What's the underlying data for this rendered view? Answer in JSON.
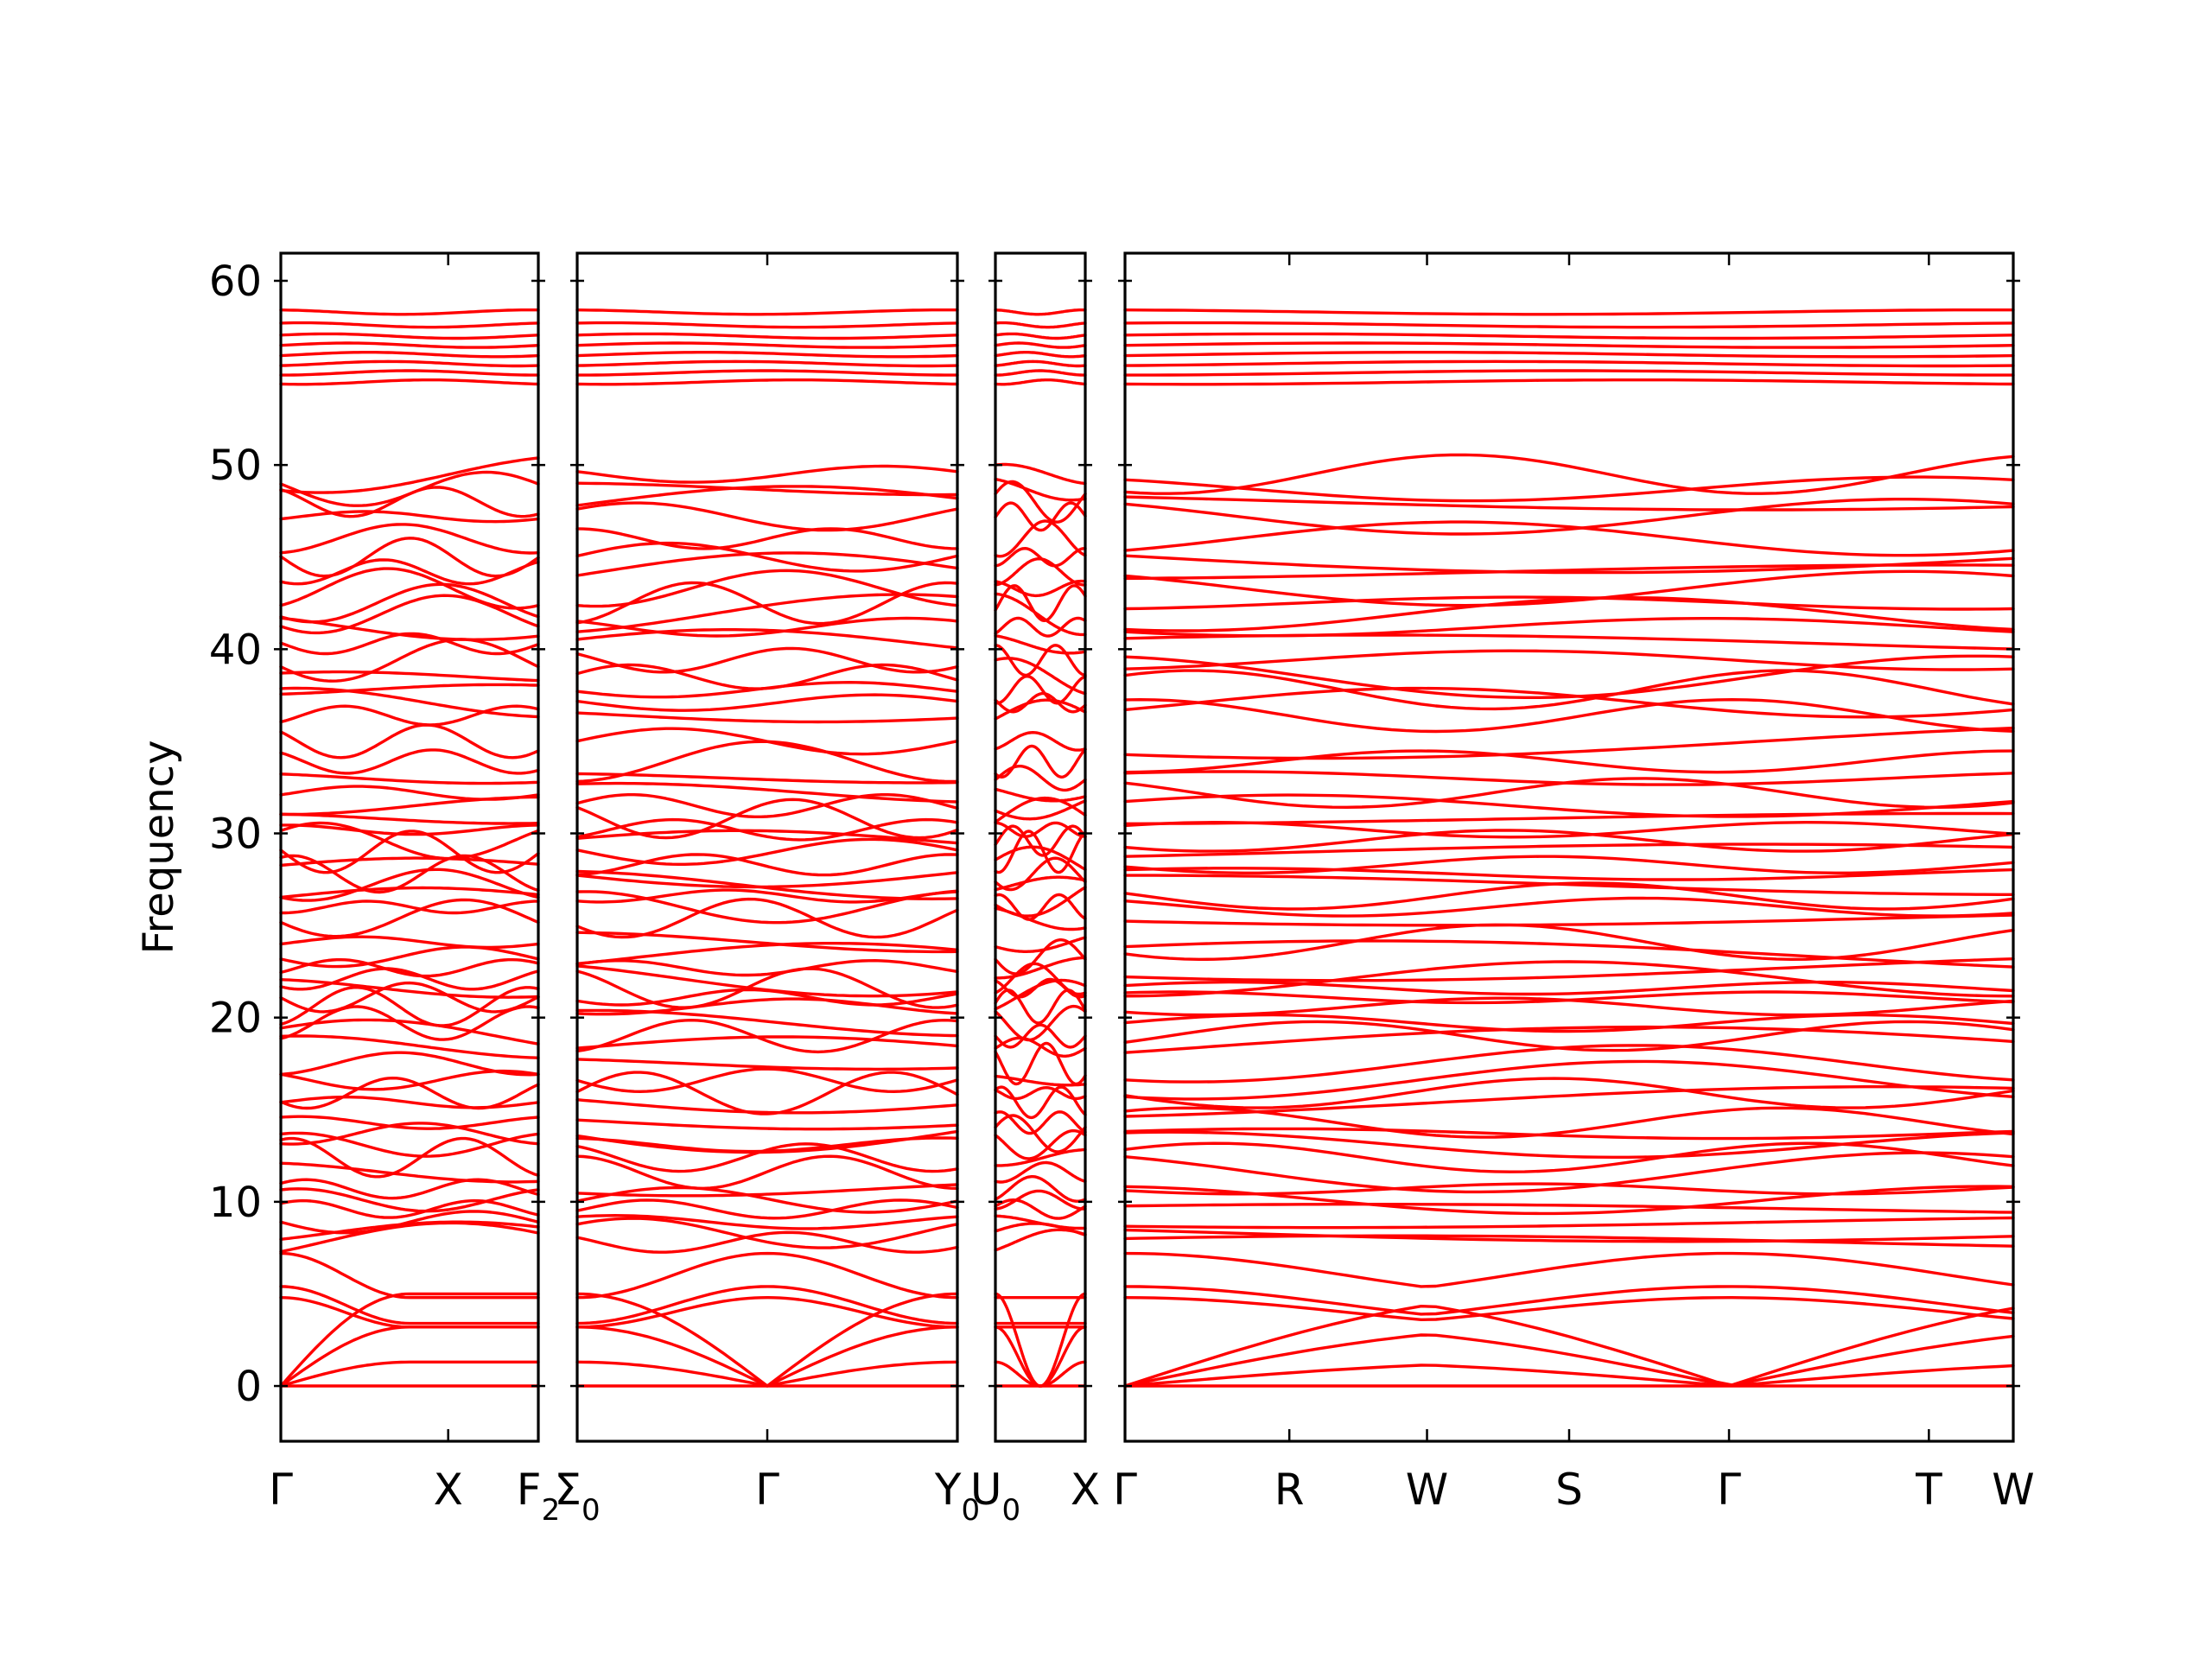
{
  "chart_data": {
    "type": "line",
    "ylabel": "Frequency",
    "ylim": [
      -3,
      61.5
    ],
    "yticks": [
      0,
      10,
      20,
      30,
      40,
      50,
      60
    ],
    "grid": false,
    "colors": {
      "bands": "#ff0000",
      "zero_line": "#0000cc",
      "axes": "#000000"
    },
    "segments": [
      {
        "kpoints": [
          {
            "base": "Γ",
            "sub": ""
          },
          {
            "base": "X",
            "sub": ""
          },
          {
            "base": "F",
            "sub": "2"
          }
        ],
        "kpos": [
          0,
          0.65,
          1
        ]
      },
      {
        "kpoints": [
          {
            "base": "Σ",
            "sub": "0"
          },
          {
            "base": "Γ",
            "sub": ""
          },
          {
            "base": "Y",
            "sub": "0"
          }
        ],
        "kpos": [
          0,
          0.5,
          1
        ]
      },
      {
        "kpoints": [
          {
            "base": "U",
            "sub": "0"
          },
          {
            "base": "X",
            "sub": ""
          }
        ],
        "kpos": [
          0,
          1
        ]
      },
      {
        "kpoints": [
          {
            "base": "Γ",
            "sub": ""
          },
          {
            "base": "R",
            "sub": ""
          },
          {
            "base": "W",
            "sub": ""
          },
          {
            "base": "S",
            "sub": ""
          },
          {
            "base": "Γ",
            "sub": ""
          },
          {
            "base": "T",
            "sub": ""
          },
          {
            "base": "W",
            "sub": ""
          }
        ],
        "kpos": [
          0,
          0.185,
          0.34,
          0.5,
          0.68,
          0.905,
          1
        ]
      }
    ],
    "band_groups": {
      "acoustic": {
        "gamma_value": 0,
        "zone_values": [
          1.3,
          3.2,
          5.0
        ]
      },
      "optical_low": [
        4.8,
        5.4,
        7.2
      ],
      "optical_levels": [
        7.8,
        8.3,
        8.9,
        9.6,
        10.1,
        10.7,
        11.6,
        12.4,
        13.1,
        13.7,
        14.3,
        15.4,
        15.9,
        16.6,
        17.5,
        18.4,
        19.0,
        19.7,
        20.6,
        21.1,
        21.6,
        22.1,
        22.7,
        23.3,
        24.1,
        25.4,
        26.0,
        26.6,
        27.2,
        27.8,
        28.3,
        29.0,
        29.6,
        30.2,
        30.8,
        31.5,
        32.2,
        33.0,
        33.9,
        35.0,
        36.4,
        37.1,
        37.8,
        38.5,
        39.4,
        40.3,
        41.2,
        41.9,
        42.5,
        43.3,
        44.2,
        45.0,
        46.0,
        47.2,
        48.0,
        48.7,
        49.5
      ],
      "top_levels": [
        54.5,
        55.0,
        55.5,
        56.0,
        56.5,
        57.0,
        57.6,
        58.3
      ]
    }
  }
}
